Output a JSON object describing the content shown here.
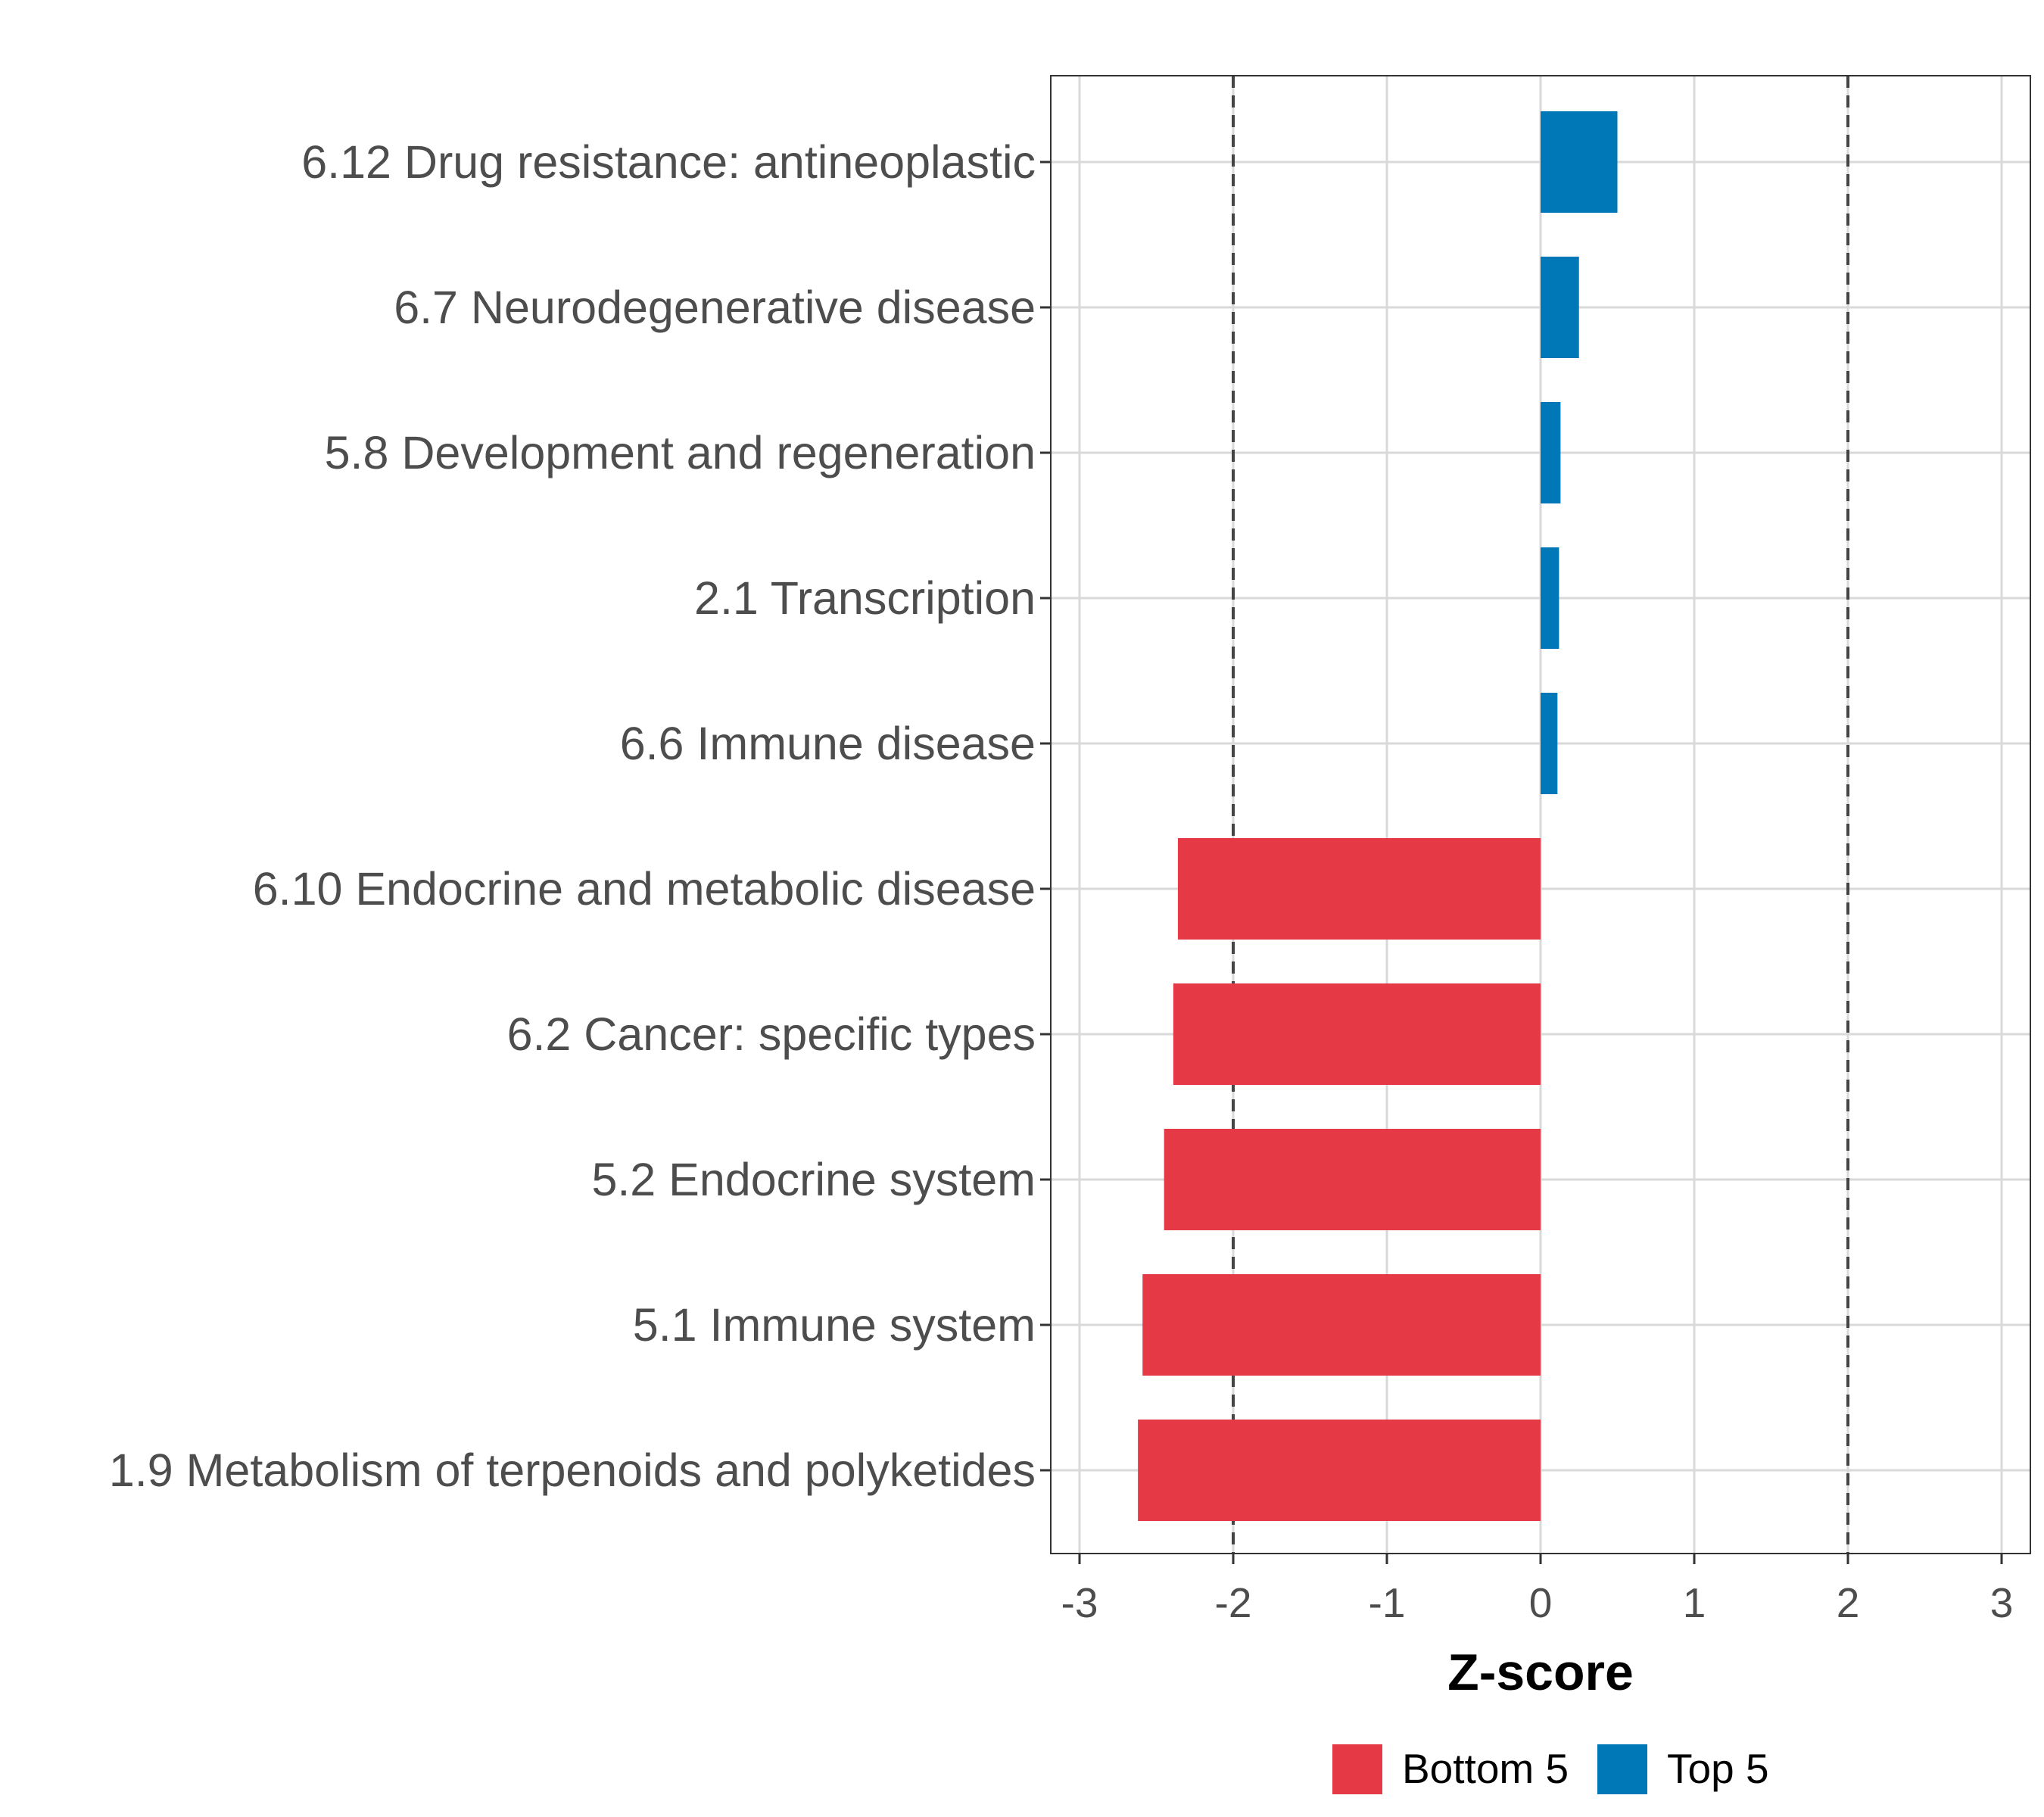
{
  "chart_data": {
    "type": "bar",
    "orientation": "horizontal",
    "xlabel": "Z-score",
    "ylabel": "",
    "xlim": [
      -3.2,
      3.2
    ],
    "xticks": [
      -3,
      -2,
      -1,
      0,
      1,
      2,
      3
    ],
    "xtick_labels": [
      "-3",
      "-2",
      "-1",
      "0",
      "1",
      "2",
      "3"
    ],
    "reference_lines": [
      -2,
      2
    ],
    "grid": true,
    "categories": [
      "6.12 Drug resistance: antineoplastic",
      "6.7 Neurodegenerative disease",
      "5.8 Development and regeneration",
      "2.1 Transcription",
      "6.6 Immune disease",
      "6.10 Endocrine and metabolic disease",
      "6.2 Cancer: specific types",
      "5.2 Endocrine system",
      "5.1 Immune system",
      "1.9 Metabolism of terpenoids and polyketides"
    ],
    "values": [
      0.5,
      0.25,
      0.13,
      0.12,
      0.11,
      -2.36,
      -2.39,
      -2.45,
      -2.59,
      -2.62
    ],
    "groups": [
      "Top 5",
      "Top 5",
      "Top 5",
      "Top 5",
      "Top 5",
      "Bottom 5",
      "Bottom 5",
      "Bottom 5",
      "Bottom 5",
      "Bottom 5"
    ],
    "legend": [
      {
        "name": "Bottom 5",
        "color": "#e63946"
      },
      {
        "name": "Top 5",
        "color": "#0077b6"
      }
    ],
    "legend_position": "bottom"
  }
}
